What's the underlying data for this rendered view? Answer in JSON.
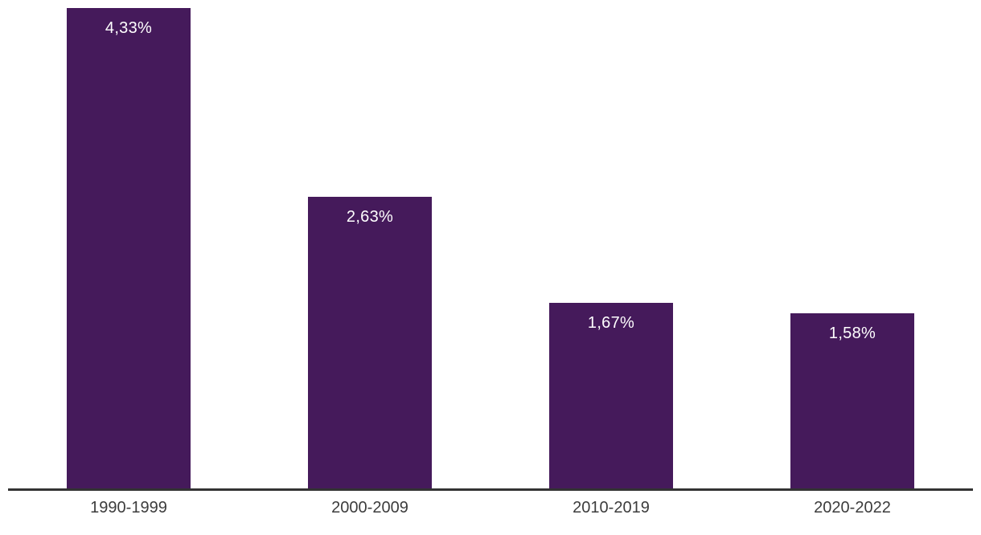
{
  "chart_data": {
    "type": "bar",
    "title": "",
    "xlabel": "",
    "ylabel": "",
    "categories": [
      "1990-1999",
      "2000-2009",
      "2010-2019",
      "2020-2022"
    ],
    "values": [
      4.33,
      2.63,
      1.67,
      1.58
    ],
    "value_labels": [
      "4,33%",
      "2,63%",
      "1,67%",
      "1,58%"
    ],
    "value_label_position": "inside-top",
    "ylim": [
      0,
      4.4
    ],
    "grid": false,
    "legend_position": "none",
    "bar_color": "#451a5b",
    "value_label_color": "#ffffff",
    "axis_line_color": "#333333",
    "category_label_color": "#3c3c3c",
    "background_color": "#ffffff"
  }
}
